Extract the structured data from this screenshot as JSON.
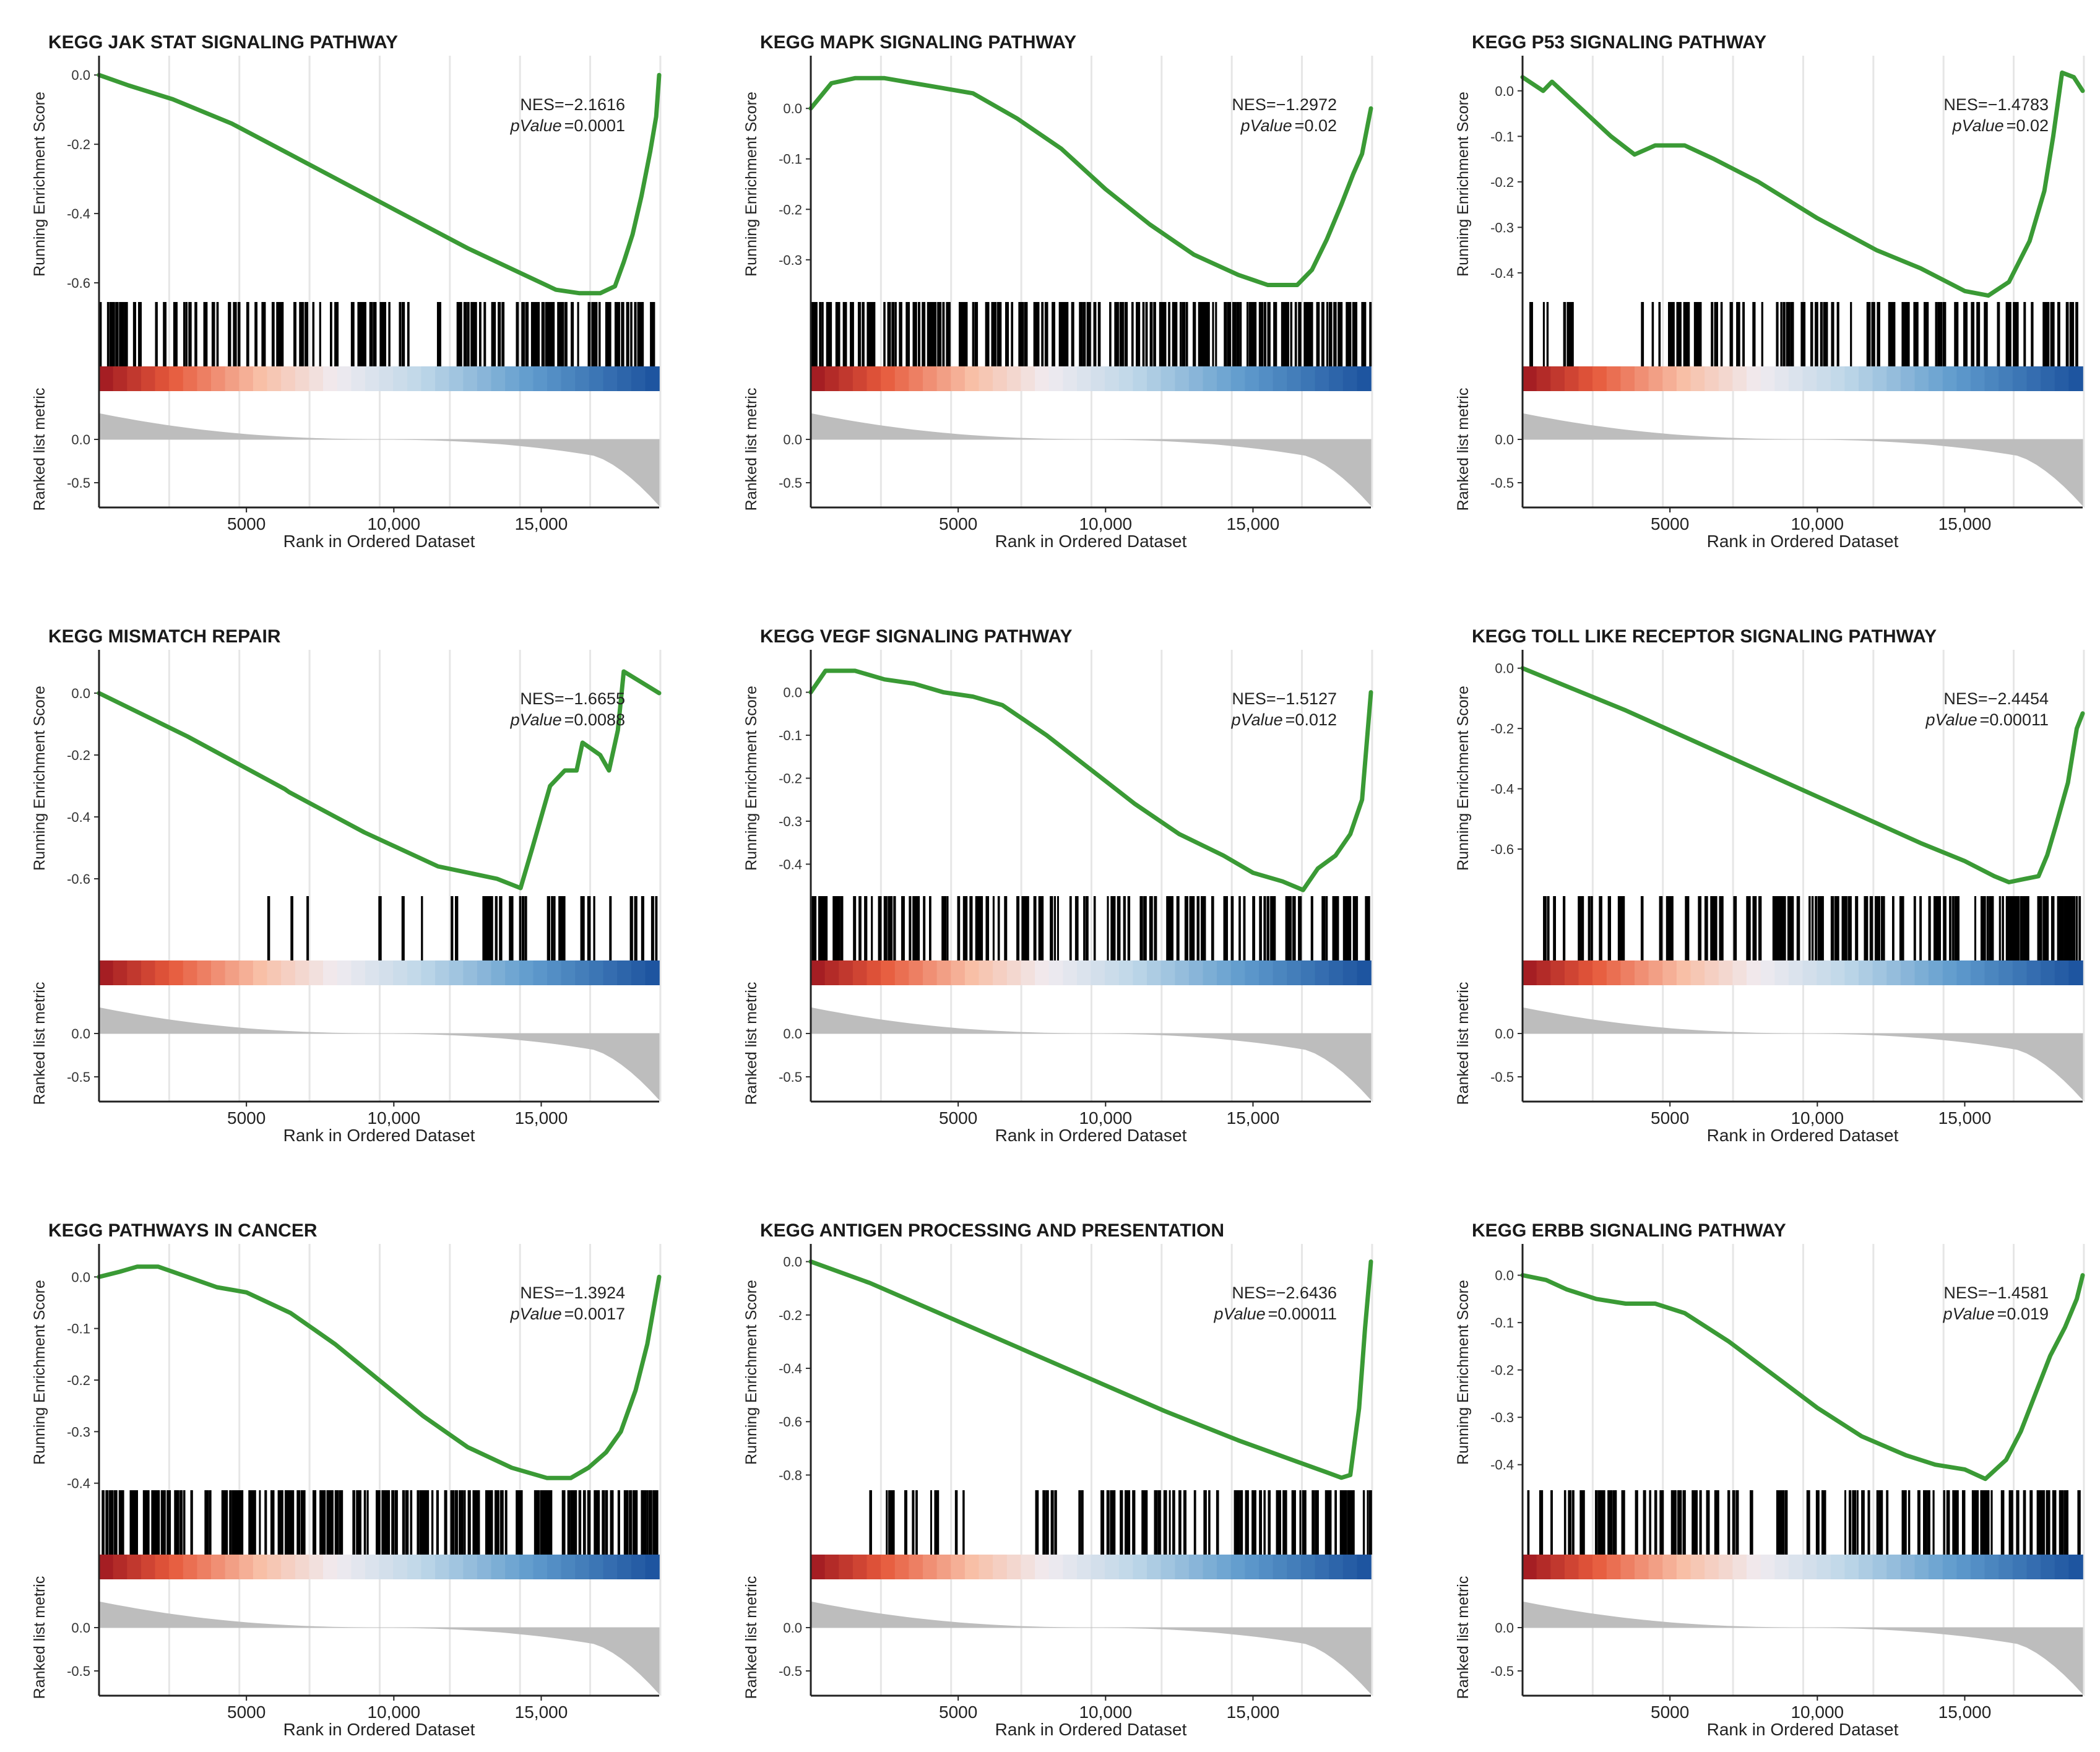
{
  "chart_data": [
    {
      "type": "line",
      "title": "KEGG JAK STAT SIGNALING PATHWAY",
      "nes": "NES=−2.1616",
      "pvalue_label": "pValue",
      "pvalue": "=0.0001",
      "ylabel": "Running Enrichment Score",
      "ylabel2": "Ranked list metric",
      "xlabel": "Rank in Ordered Dataset",
      "xlim": [
        0,
        19000
      ],
      "ylim": [
        -0.65,
        0.02
      ],
      "yticks": [
        0.0,
        -0.2,
        -0.4,
        -0.6
      ],
      "yticklabels": [
        "0.0",
        "-0.2",
        "-0.4",
        "-0.6"
      ],
      "xticks": [
        5000,
        10000,
        15000
      ],
      "xticklabels": [
        "5000",
        "10,000",
        "15,000"
      ],
      "metric_ticks": [
        "0.0",
        "-0.5"
      ],
      "es_x": [
        0,
        1000,
        2500,
        4500,
        6500,
        8500,
        10500,
        12500,
        14500,
        15500,
        16300,
        17000,
        17500,
        17800,
        18100,
        18400,
        18700,
        18900,
        19000
      ],
      "es_y": [
        0.0,
        -0.03,
        -0.07,
        -0.14,
        -0.23,
        -0.32,
        -0.41,
        -0.5,
        -0.58,
        -0.62,
        -0.63,
        -0.63,
        -0.61,
        -0.54,
        -0.46,
        -0.35,
        -0.22,
        -0.12,
        0.0
      ],
      "hits_density": [
        0.5,
        0.55,
        0.6,
        0.6,
        0.55,
        0.55,
        0.6,
        0.65,
        0.85,
        1.0
      ]
    },
    {
      "type": "line",
      "title": "KEGG MAPK SIGNALING PATHWAY",
      "nes": "NES=−1.2972",
      "pvalue_label": "pValue",
      "pvalue": "=0.02",
      "ylabel": "Running Enrichment Score",
      "ylabel2": "Ranked list metric",
      "xlabel": "Rank in Ordered Dataset",
      "xlim": [
        0,
        19000
      ],
      "ylim": [
        -0.38,
        0.08
      ],
      "yticks": [
        0.0,
        -0.1,
        -0.2,
        -0.3
      ],
      "yticklabels": [
        "0.0",
        "-0.1",
        "-0.2",
        "-0.3"
      ],
      "xticks": [
        5000,
        10000,
        15000
      ],
      "xticklabels": [
        "5000",
        "10,000",
        "15,000"
      ],
      "metric_ticks": [
        "0.0",
        "-0.5"
      ],
      "es_x": [
        0,
        700,
        1500,
        2500,
        3500,
        4500,
        5500,
        7000,
        8500,
        10000,
        11500,
        13000,
        14500,
        15500,
        16500,
        17000,
        17500,
        18000,
        18400,
        18700,
        19000
      ],
      "es_y": [
        0.0,
        0.05,
        0.06,
        0.06,
        0.05,
        0.04,
        0.03,
        -0.02,
        -0.08,
        -0.16,
        -0.23,
        -0.29,
        -0.33,
        -0.35,
        -0.35,
        -0.32,
        -0.26,
        -0.19,
        -0.13,
        -0.09,
        0.0
      ],
      "hits_density": [
        1.0,
        0.95,
        1.0,
        0.95,
        0.9,
        0.8,
        0.85,
        0.85,
        0.9,
        0.95
      ]
    },
    {
      "type": "line",
      "title": "KEGG P53 SIGNALING PATHWAY",
      "nes": "NES=−1.4783",
      "pvalue_label": "pValue",
      "pvalue": "=0.02",
      "ylabel": "Running Enrichment Score",
      "ylabel2": "Ranked list metric",
      "xlabel": "Rank in Ordered Dataset",
      "xlim": [
        0,
        19000
      ],
      "ylim": [
        -0.46,
        0.05
      ],
      "yticks": [
        0.0,
        -0.1,
        -0.2,
        -0.3,
        -0.4
      ],
      "yticklabels": [
        "0.0",
        "-0.1",
        "-0.2",
        "-0.3",
        "-0.4"
      ],
      "xticks": [
        5000,
        10000,
        15000
      ],
      "xticklabels": [
        "5000",
        "10,000",
        "15,000"
      ],
      "metric_ticks": [
        "0.0",
        "-0.5"
      ],
      "es_x": [
        0,
        700,
        1000,
        2000,
        3000,
        3800,
        4500,
        5500,
        6500,
        8000,
        10000,
        12000,
        13500,
        15000,
        15800,
        16500,
        17200,
        17700,
        18000,
        18300,
        18700,
        19000
      ],
      "es_y": [
        0.03,
        0.0,
        0.02,
        -0.04,
        -0.1,
        -0.14,
        -0.12,
        -0.12,
        -0.15,
        -0.2,
        -0.28,
        -0.35,
        -0.39,
        -0.44,
        -0.45,
        -0.42,
        -0.33,
        -0.22,
        -0.1,
        0.04,
        0.03,
        0.0
      ],
      "hits_density": [
        0.3,
        0.0,
        0.55,
        0.6,
        0.55,
        0.5,
        0.6,
        0.6,
        0.55,
        0.55
      ]
    },
    {
      "type": "line",
      "title": "KEGG MISMATCH REPAIR",
      "nes": "NES=−1.6655",
      "pvalue_label": "pValue",
      "pvalue": "=0.0088",
      "ylabel": "Running Enrichment Score",
      "ylabel2": "Ranked list metric",
      "xlabel": "Rank in Ordered Dataset",
      "xlim": [
        0,
        19000
      ],
      "ylim": [
        -0.65,
        0.1
      ],
      "yticks": [
        0.0,
        -0.2,
        -0.4,
        -0.6
      ],
      "yticklabels": [
        "0.0",
        "-0.2",
        "-0.4",
        "-0.6"
      ],
      "xticks": [
        5000,
        10000,
        15000
      ],
      "xticklabels": [
        "5000",
        "10,000",
        "15,000"
      ],
      "metric_ticks": [
        "0.0",
        "-0.5"
      ],
      "es_x": [
        0,
        3000,
        6300,
        6450,
        9000,
        11500,
        13500,
        14300,
        14700,
        15000,
        15300,
        15800,
        16200,
        16400,
        17000,
        17300,
        17600,
        17800,
        19000
      ],
      "es_y": [
        0.0,
        -0.14,
        -0.31,
        -0.32,
        -0.45,
        -0.56,
        -0.6,
        -0.63,
        -0.5,
        -0.4,
        -0.3,
        -0.25,
        -0.25,
        -0.16,
        -0.2,
        -0.25,
        -0.12,
        0.07,
        0.0
      ],
      "hits_density": [
        0.0,
        0.0,
        0.0,
        0.12,
        0.0,
        0.12,
        0.25,
        0.35,
        0.7,
        0.3
      ]
    },
    {
      "type": "line",
      "title": "KEGG VEGF SIGNALING PATHWAY",
      "nes": "NES=−1.5127",
      "pvalue_label": "pValue",
      "pvalue": "=0.012",
      "ylabel": "Running Enrichment Score",
      "ylabel2": "Ranked list metric",
      "xlabel": "Rank in Ordered Dataset",
      "xlim": [
        0,
        19000
      ],
      "ylim": [
        -0.47,
        0.07
      ],
      "yticks": [
        0.0,
        -0.1,
        -0.2,
        -0.3,
        -0.4
      ],
      "yticklabels": [
        "0.0",
        "-0.1",
        "-0.2",
        "-0.3",
        "-0.4"
      ],
      "xticks": [
        5000,
        10000,
        15000
      ],
      "xticklabels": [
        "5000",
        "10,000",
        "15,000"
      ],
      "metric_ticks": [
        "0.0",
        "-0.5"
      ],
      "es_x": [
        0,
        500,
        1500,
        2500,
        3500,
        4500,
        5500,
        6500,
        8000,
        9500,
        11000,
        12500,
        14000,
        15000,
        16000,
        16700,
        17200,
        17800,
        18300,
        18700,
        19000
      ],
      "es_y": [
        0.0,
        0.05,
        0.05,
        0.03,
        0.02,
        0.0,
        -0.01,
        -0.03,
        -0.1,
        -0.18,
        -0.26,
        -0.33,
        -0.38,
        -0.42,
        -0.44,
        -0.46,
        -0.41,
        -0.38,
        -0.33,
        -0.25,
        0.0
      ],
      "hits_density": [
        0.75,
        0.8,
        0.6,
        0.7,
        0.55,
        0.5,
        0.6,
        0.5,
        0.75,
        0.95
      ]
    },
    {
      "type": "line",
      "title": "KEGG TOLL LIKE RECEPTOR SIGNALING PATHWAY",
      "nes": "NES=−2.4454",
      "pvalue_label": "pValue",
      "pvalue": "=0.00011",
      "ylabel": "Running Enrichment Score",
      "ylabel2": "Ranked list metric",
      "xlabel": "Rank in Ordered Dataset",
      "xlim": [
        0,
        19000
      ],
      "ylim": [
        -0.75,
        0.02
      ],
      "yticks": [
        0.0,
        -0.2,
        -0.4,
        -0.6
      ],
      "yticklabels": [
        "0.0",
        "-0.2",
        "-0.4",
        "-0.6"
      ],
      "xticks": [
        5000,
        10000,
        15000
      ],
      "xticklabels": [
        "5000",
        "10,000",
        "15,000"
      ],
      "metric_ticks": [
        "0.0",
        "-0.5"
      ],
      "es_x": [
        0,
        1500,
        3500,
        6000,
        8500,
        11000,
        13500,
        15000,
        16000,
        16500,
        17000,
        17500,
        17800,
        18100,
        18500,
        18800,
        19000
      ],
      "es_y": [
        0.0,
        -0.06,
        -0.14,
        -0.25,
        -0.36,
        -0.47,
        -0.58,
        -0.64,
        -0.69,
        -0.71,
        -0.7,
        -0.69,
        -0.62,
        -0.52,
        -0.38,
        -0.2,
        -0.15
      ],
      "hits_density": [
        0.2,
        0.5,
        0.45,
        0.5,
        0.7,
        0.75,
        0.7,
        0.65,
        0.85,
        1.0
      ]
    },
    {
      "type": "line",
      "title": "KEGG PATHWAYS IN CANCER",
      "nes": "NES=−1.3924",
      "pvalue_label": "pValue",
      "pvalue": "=0.0017",
      "ylabel": "Running Enrichment Score",
      "ylabel2": "Ranked list metric",
      "xlabel": "Rank in Ordered Dataset",
      "xlim": [
        0,
        19000
      ],
      "ylim": [
        -0.41,
        0.04
      ],
      "yticks": [
        0.0,
        -0.1,
        -0.2,
        -0.3,
        -0.4
      ],
      "yticklabels": [
        "0.0",
        "-0.1",
        "-0.2",
        "-0.3",
        "-0.4"
      ],
      "xticks": [
        5000,
        10000,
        15000
      ],
      "xticklabels": [
        "5000",
        "10,000",
        "15,000"
      ],
      "metric_ticks": [
        "0.0",
        "-0.5"
      ],
      "es_x": [
        0,
        700,
        1300,
        2000,
        3000,
        4000,
        5000,
        6500,
        8000,
        9500,
        11000,
        12500,
        14000,
        15200,
        16000,
        16600,
        17200,
        17700,
        18200,
        18600,
        19000
      ],
      "es_y": [
        0.0,
        0.01,
        0.02,
        0.02,
        0.0,
        -0.02,
        -0.03,
        -0.07,
        -0.13,
        -0.2,
        -0.27,
        -0.33,
        -0.37,
        -0.39,
        -0.39,
        -0.37,
        -0.34,
        -0.3,
        -0.22,
        -0.13,
        0.0
      ],
      "hits_density": [
        1.0,
        0.95,
        0.9,
        0.95,
        0.85,
        0.95,
        0.9,
        0.9,
        0.85,
        1.0
      ]
    },
    {
      "type": "line",
      "title": "KEGG ANTIGEN PROCESSING AND PRESENTATION",
      "nes": "NES=−2.6436",
      "pvalue_label": "pValue",
      "pvalue": "=0.00011",
      "ylabel": "Running Enrichment Score",
      "ylabel2": "Ranked list metric",
      "xlabel": "Rank in Ordered Dataset",
      "xlim": [
        0,
        19000
      ],
      "ylim": [
        -0.85,
        0.02
      ],
      "yticks": [
        0.0,
        -0.2,
        -0.4,
        -0.6,
        -0.8
      ],
      "yticklabels": [
        "0.0",
        "-0.2",
        "-0.4",
        "-0.6",
        "-0.8"
      ],
      "xticks": [
        5000,
        10000,
        15000
      ],
      "xticklabels": [
        "5000",
        "10,000",
        "15,000"
      ],
      "metric_ticks": [
        "0.0",
        "-0.5"
      ],
      "es_x": [
        0,
        2000,
        4500,
        7000,
        9500,
        12000,
        14500,
        16500,
        17500,
        18000,
        18300,
        18600,
        18800,
        19000
      ],
      "es_y": [
        0.0,
        -0.08,
        -0.2,
        -0.32,
        -0.44,
        -0.56,
        -0.67,
        -0.75,
        -0.79,
        -0.81,
        -0.8,
        -0.55,
        -0.25,
        0.0
      ],
      "hits_density": [
        0.0,
        0.3,
        0.25,
        0.0,
        0.3,
        0.5,
        0.55,
        0.6,
        0.75,
        0.9
      ]
    },
    {
      "type": "line",
      "title": "KEGG ERBB SIGNALING PATHWAY",
      "nes": "NES=−1.4581",
      "pvalue_label": "pValue",
      "pvalue": "=0.019",
      "ylabel": "Running Enrichment Score",
      "ylabel2": "Ranked list metric",
      "xlabel": "Rank in Ordered Dataset",
      "xlim": [
        0,
        19000
      ],
      "ylim": [
        -0.45,
        0.04
      ],
      "yticks": [
        0.0,
        -0.1,
        -0.2,
        -0.3,
        -0.4
      ],
      "yticklabels": [
        "0.0",
        "-0.1",
        "-0.2",
        "-0.3",
        "-0.4"
      ],
      "xticks": [
        5000,
        10000,
        15000
      ],
      "xticklabels": [
        "5000",
        "10,000",
        "15,000"
      ],
      "metric_ticks": [
        "0.0",
        "-0.5"
      ],
      "es_x": [
        0,
        800,
        1500,
        2500,
        3500,
        4500,
        5500,
        7000,
        8500,
        10000,
        11500,
        13000,
        14000,
        15000,
        15700,
        16400,
        16900,
        17400,
        17900,
        18400,
        18800,
        19000
      ],
      "es_y": [
        0.0,
        -0.01,
        -0.03,
        -0.05,
        -0.06,
        -0.06,
        -0.08,
        -0.14,
        -0.21,
        -0.28,
        -0.34,
        -0.38,
        -0.4,
        -0.41,
        -0.43,
        -0.39,
        -0.33,
        -0.25,
        -0.17,
        -0.11,
        -0.05,
        0.0
      ],
      "hits_density": [
        0.3,
        0.6,
        0.55,
        0.55,
        0.3,
        0.5,
        0.55,
        0.6,
        0.75,
        0.85
      ]
    }
  ]
}
